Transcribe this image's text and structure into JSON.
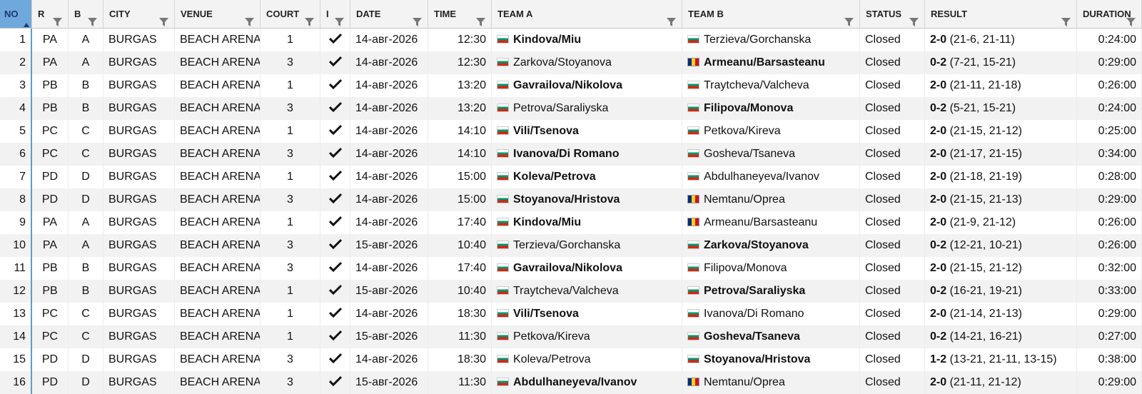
{
  "table": {
    "headers": [
      "NO",
      "R",
      "B",
      "CITY",
      "VENUE",
      "COURT",
      "I",
      "DATE",
      "TIME",
      "TEAM A",
      "TEAM B",
      "STATUS",
      "RESULT",
      "DURATION"
    ],
    "rows": [
      [
        1,
        "PA",
        "A",
        "BURGAS",
        "BEACH ARENA",
        1,
        "14-авг-2026",
        "12:30",
        "Kindova/Miu",
        "Terzieva/Gorchanska",
        "Closed",
        "2-0",
        "(21-6, 21-11)",
        "0:24:00"
      ],
      [
        2,
        "PA",
        "A",
        "BURGAS",
        "BEACH ARENA",
        3,
        "14-авг-2026",
        "12:30",
        "Zarkova/Stoyanova",
        "Armeanu/Barsasteanu",
        "Closed",
        "0-2",
        "(7-21, 15-21)",
        "0:29:00"
      ],
      [
        3,
        "PB",
        "B",
        "BURGAS",
        "BEACH ARENA",
        1,
        "14-авг-2026",
        "13:20",
        "Gavrailova/Nikolova",
        "Traytcheva/Valcheva",
        "Closed",
        "2-0",
        "(21-11, 21-18)",
        "0:26:00"
      ],
      [
        4,
        "PB",
        "B",
        "BURGAS",
        "BEACH ARENA",
        3,
        "14-авг-2026",
        "13:20",
        "Petrova/Saraliyska",
        "Filipova/Monova",
        "Closed",
        "0-2",
        "(5-21, 15-21)",
        "0:24:00"
      ],
      [
        5,
        "PC",
        "C",
        "BURGAS",
        "BEACH ARENA",
        1,
        "14-авг-2026",
        "14:10",
        "Vili/Tsenova",
        "Petkova/Kireva",
        "Closed",
        "2-0",
        "(21-15, 21-12)",
        "0:25:00"
      ],
      [
        6,
        "PC",
        "C",
        "BURGAS",
        "BEACH ARENA",
        3,
        "14-авг-2026",
        "14:10",
        "Ivanova/Di Romano",
        "Gosheva/Tsaneva",
        "Closed",
        "2-0",
        "(21-17, 21-15)",
        "0:34:00"
      ],
      [
        7,
        "PD",
        "D",
        "BURGAS",
        "BEACH ARENA",
        1,
        "14-авг-2026",
        "15:00",
        "Koleva/Petrova",
        "Abdulhaneyeva/Ivanov",
        "Closed",
        "2-0",
        "(21-18, 21-19)",
        "0:28:00"
      ],
      [
        8,
        "PD",
        "D",
        "BURGAS",
        "BEACH ARENA",
        3,
        "14-авг-2026",
        "15:00",
        "Stoyanova/Hristova",
        "Nemtanu/Oprea",
        "Closed",
        "2-0",
        "(21-15, 21-13)",
        "0:29:00"
      ],
      [
        9,
        "PA",
        "A",
        "BURGAS",
        "BEACH ARENA",
        1,
        "14-авг-2026",
        "17:40",
        "Kindova/Miu",
        "Armeanu/Barsasteanu",
        "Closed",
        "2-0",
        "(21-9, 21-12)",
        "0:26:00"
      ],
      [
        10,
        "PA",
        "A",
        "BURGAS",
        "BEACH ARENA",
        3,
        "15-авг-2026",
        "10:40",
        "Terzieva/Gorchanska",
        "Zarkova/Stoyanova",
        "Closed",
        "0-2",
        "(12-21, 10-21)",
        "0:26:00"
      ],
      [
        11,
        "PB",
        "B",
        "BURGAS",
        "BEACH ARENA",
        3,
        "14-авг-2026",
        "17:40",
        "Gavrailova/Nikolova",
        "Filipova/Monova",
        "Closed",
        "2-0",
        "(21-15, 21-12)",
        "0:32:00"
      ],
      [
        12,
        "PB",
        "B",
        "BURGAS",
        "BEACH ARENA",
        1,
        "15-авг-2026",
        "10:40",
        "Traytcheva/Valcheva",
        "Petrova/Saraliyska",
        "Closed",
        "0-2",
        "(16-21, 19-21)",
        "0:33:00"
      ],
      [
        13,
        "PC",
        "C",
        "BURGAS",
        "BEACH ARENA",
        1,
        "14-авг-2026",
        "18:30",
        "Vili/Tsenova",
        "Ivanova/Di Romano",
        "Closed",
        "2-0",
        "(21-14, 21-13)",
        "0:29:00"
      ],
      [
        14,
        "PC",
        "C",
        "BURGAS",
        "BEACH ARENA",
        1,
        "15-авг-2026",
        "11:30",
        "Petkova/Kireva",
        "Gosheva/Tsaneva",
        "Closed",
        "0-2",
        "(14-21, 16-21)",
        "0:27:00"
      ],
      [
        15,
        "PD",
        "D",
        "BURGAS",
        "BEACH ARENA",
        3,
        "14-авг-2026",
        "18:30",
        "Koleva/Petrova",
        "Stoyanova/Hristova",
        "Closed",
        "1-2",
        "(13-21, 21-11, 13-15)",
        "0:38:00"
      ],
      [
        16,
        "PD",
        "D",
        "BURGAS",
        "BEACH ARENA",
        3,
        "15-авг-2026",
        "11:30",
        "Abdulhaneyeva/Ivanov",
        "Nemtanu/Oprea",
        "Closed",
        "2-0",
        "(21-11, 21-12)",
        "0:29:00"
      ]
    ]
  }
}
